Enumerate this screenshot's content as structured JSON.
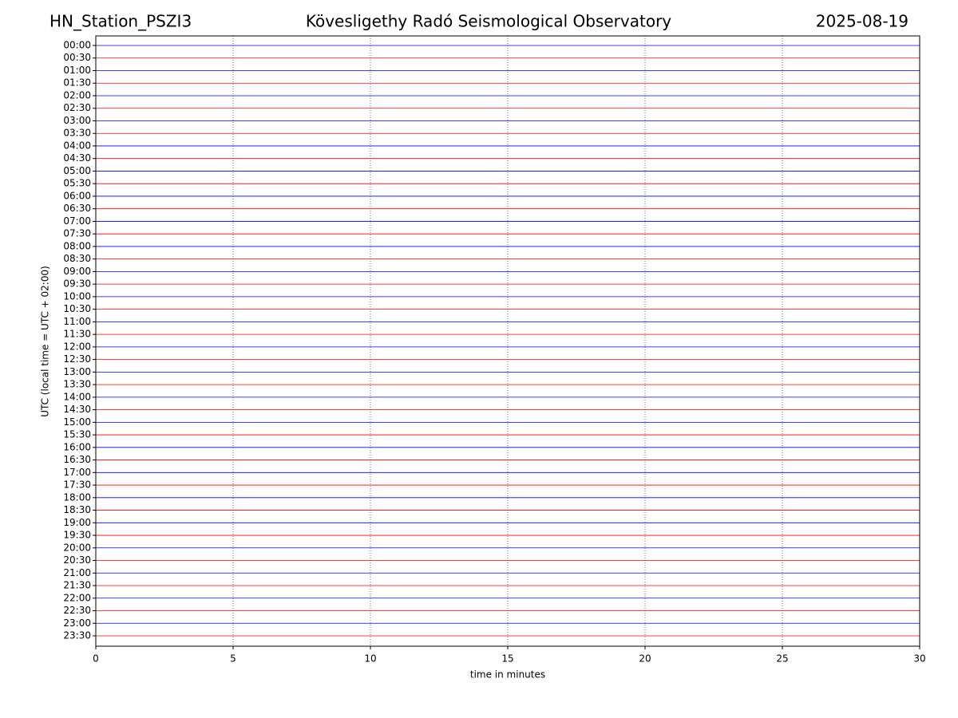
{
  "chart_data": {
    "type": "helicorder",
    "title_left": "HN_Station_PSZI3",
    "title": "Kövesligethy Radó Seismological Observatory",
    "title_right": "2025-08-19",
    "xlabel": "time in minutes",
    "ylabel": "UTC (local time = UTC + 02:00)",
    "categories": [
      "00:00",
      "00:30",
      "01:00",
      "01:30",
      "02:00",
      "02:30",
      "03:00",
      "03:30",
      "04:00",
      "04:30",
      "05:00",
      "05:30",
      "06:00",
      "06:30",
      "07:00",
      "07:30",
      "08:00",
      "08:30",
      "09:00",
      "09:30",
      "10:00",
      "10:30",
      "11:00",
      "11:30",
      "12:00",
      "12:30",
      "13:00",
      "13:30",
      "14:00",
      "14:30",
      "15:00",
      "15:30",
      "16:00",
      "16:30",
      "17:00",
      "17:30",
      "18:00",
      "18:30",
      "19:00",
      "19:30",
      "20:00",
      "20:30",
      "21:00",
      "21:30",
      "22:00",
      "22:30",
      "23:00",
      "23:30"
    ],
    "colors": [
      "#0000ff",
      "#ff0000"
    ],
    "xlim": [
      0,
      30
    ],
    "xticks": [
      0,
      5,
      10,
      15,
      20,
      25,
      30
    ],
    "grid": true
  }
}
